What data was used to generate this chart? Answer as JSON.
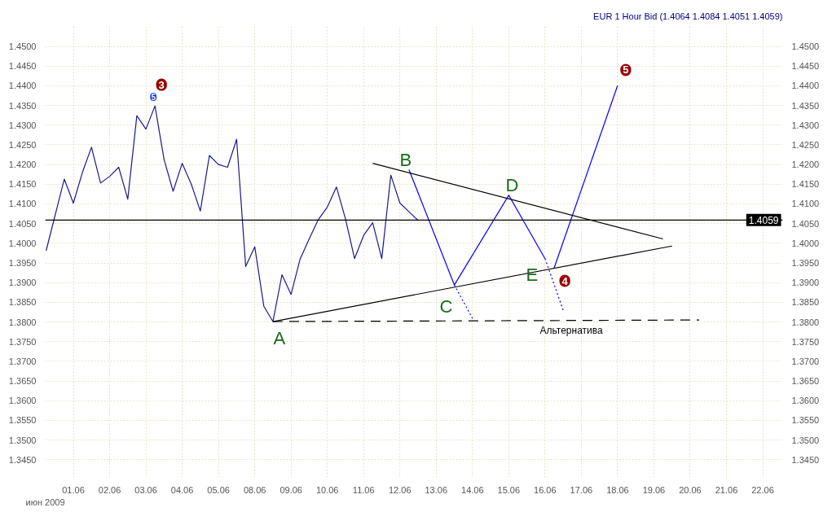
{
  "chart_data": {
    "type": "line",
    "title": "EUR 1 Hour Bid (1.4064 1.4084 1.4051 1.4059)",
    "xlabel": "июн 2009",
    "categories": [
      null,
      null,
      null,
      "01.06",
      null,
      null,
      null,
      "02.06",
      null,
      null,
      null,
      "03.06",
      null,
      null,
      null,
      "04.06",
      null,
      null,
      null,
      "05.06",
      null,
      null,
      null,
      "08.06",
      null,
      null,
      null,
      "09.06",
      null,
      null,
      null,
      "10.06",
      null,
      null,
      null,
      "11.06",
      null,
      null,
      null,
      "12.06",
      null,
      null,
      null,
      "13.06",
      null,
      null,
      null,
      "14.06",
      null,
      null,
      null,
      "15.06",
      null,
      null,
      null,
      "16.06",
      null,
      null,
      null,
      "17.06",
      null,
      null,
      null,
      "18.06",
      null,
      null,
      null,
      "19.06",
      null,
      null,
      null,
      "20.06",
      null,
      null,
      null,
      "21.06",
      null,
      null,
      null,
      "22.06"
    ],
    "ylim": [
      1.3405,
      1.4555
    ],
    "yticks": [
      {
        "value": 1.345,
        "label": "1.3450"
      },
      {
        "value": 1.35,
        "label": "1.3500"
      },
      {
        "value": 1.355,
        "label": "1.3550"
      },
      {
        "value": 1.36,
        "label": "1.3600"
      },
      {
        "value": 1.365,
        "label": "1.3650"
      },
      {
        "value": 1.37,
        "label": "1.3700"
      },
      {
        "value": 1.375,
        "label": "1.3750"
      },
      {
        "value": 1.38,
        "label": "1.3800"
      },
      {
        "value": 1.385,
        "label": "1.3850"
      },
      {
        "value": 1.39,
        "label": "1.3900"
      },
      {
        "value": 1.395,
        "label": "1.3950"
      },
      {
        "value": 1.4,
        "label": "1.4000"
      },
      {
        "value": 1.405,
        "label": "1.4050"
      },
      {
        "value": 1.41,
        "label": "1.4100"
      },
      {
        "value": 1.415,
        "label": "1.4150"
      },
      {
        "value": 1.42,
        "label": "1.4200"
      },
      {
        "value": 1.425,
        "label": "1.4250"
      },
      {
        "value": 1.43,
        "label": "1.4300"
      },
      {
        "value": 1.435,
        "label": "1.4350"
      },
      {
        "value": 1.44,
        "label": "1.4400"
      },
      {
        "value": 1.445,
        "label": "1.4450"
      },
      {
        "value": 1.45,
        "label": "1.4500"
      }
    ],
    "y2lim": [
      1.3405,
      1.4555
    ],
    "y2ticks": [
      {
        "value": 1.345,
        "label": "1.3450"
      },
      {
        "value": 1.35,
        "label": "1.3500"
      },
      {
        "value": 1.355,
        "label": "1.3550"
      },
      {
        "value": 1.36,
        "label": "1.3600"
      },
      {
        "value": 1.365,
        "label": "1.3650"
      },
      {
        "value": 1.37,
        "label": "1.3700"
      },
      {
        "value": 1.375,
        "label": "1.3750"
      },
      {
        "value": 1.38,
        "label": "1.3800"
      },
      {
        "value": 1.385,
        "label": "1.3850"
      },
      {
        "value": 1.39,
        "label": "1.3900"
      },
      {
        "value": 1.395,
        "label": "1.3950"
      },
      {
        "value": 1.4,
        "label": "1.4000"
      },
      {
        "value": 1.405,
        "label": "1.4050"
      },
      {
        "value": 1.41,
        "label": "1.4100"
      },
      {
        "value": 1.415,
        "label": "1.4150"
      },
      {
        "value": 1.42,
        "label": "1.4200"
      },
      {
        "value": 1.425,
        "label": "1.4250"
      },
      {
        "value": 1.43,
        "label": "1.4300"
      },
      {
        "value": 1.435,
        "label": "1.4350"
      },
      {
        "value": 1.44,
        "label": "1.4400"
      },
      {
        "value": 1.445,
        "label": "1.4450"
      },
      {
        "value": 1.45,
        "label": "1.4500"
      }
    ],
    "grid": true,
    "series": [
      {
        "color": "#1a1a8c",
        "values": [
          1.3981,
          1.4072,
          1.4163,
          1.4102,
          1.418,
          1.4244,
          1.4153,
          1.417,
          1.4193,
          1.4112,
          1.4324,
          1.429,
          1.4349,
          1.4213,
          1.4132,
          1.4203,
          1.415,
          1.4082,
          1.4223,
          1.42,
          1.4193,
          1.4264,
          1.3941,
          1.3991,
          1.384,
          1.3801,
          1.392,
          1.387,
          1.396,
          1.4011,
          1.406,
          1.4092,
          1.4143,
          1.4062,
          1.3961,
          1.402,
          1.4052,
          1.3961,
          1.4173,
          1.4102,
          1.408,
          1.4058,
          null,
          null,
          null,
          null,
          null,
          null,
          null,
          null,
          null,
          null,
          null,
          null,
          null,
          null,
          null,
          null,
          null,
          null,
          null,
          null,
          null,
          null,
          null,
          null,
          null,
          null,
          null,
          null,
          null,
          null,
          null,
          null,
          null,
          null,
          null,
          null,
          null,
          null
        ]
      },
      {
        "color": "#0000ff",
        "line_style": "solid",
        "values": [
          null,
          null,
          null,
          null,
          null,
          null,
          null,
          null,
          null,
          null,
          null,
          null,
          null,
          null,
          null,
          null,
          null,
          null,
          null,
          null,
          null,
          null,
          null,
          null,
          null,
          null,
          null,
          null,
          null,
          null,
          null,
          null,
          null,
          null,
          null,
          null,
          null,
          null,
          null,
          null,
          1.4187,
          null,
          null,
          null,
          null,
          1.3894,
          null,
          null,
          null,
          null,
          null,
          1.4122,
          null,
          null,
          null,
          1.3961,
          null,
          null,
          null,
          null,
          null,
          null,
          null,
          null,
          null,
          null,
          null,
          null,
          null,
          null,
          null,
          null,
          null,
          null,
          null,
          null,
          null,
          null,
          null,
          null
        ]
      },
      {
        "color": "#0000ff",
        "line_style": "solid",
        "values": [
          null,
          null,
          null,
          null,
          null,
          null,
          null,
          null,
          null,
          null,
          null,
          null,
          null,
          null,
          null,
          null,
          null,
          null,
          null,
          null,
          null,
          null,
          null,
          null,
          null,
          null,
          null,
          null,
          null,
          null,
          null,
          null,
          null,
          null,
          null,
          null,
          null,
          null,
          null,
          null,
          null,
          null,
          null,
          null,
          null,
          null,
          null,
          null,
          null,
          null,
          null,
          null,
          null,
          null,
          null,
          null,
          1.3937,
          null,
          null,
          null,
          null,
          null,
          null,
          1.4401,
          null,
          null,
          null,
          null,
          null,
          null,
          null,
          null,
          null,
          null,
          null,
          null,
          null,
          null,
          null,
          null
        ]
      },
      {
        "color": "#0000ff",
        "line_style": "dotted",
        "values": [
          null,
          null,
          null,
          null,
          null,
          null,
          null,
          null,
          null,
          null,
          null,
          null,
          null,
          null,
          null,
          null,
          null,
          null,
          null,
          null,
          null,
          null,
          null,
          null,
          null,
          null,
          null,
          null,
          null,
          null,
          null,
          null,
          null,
          null,
          null,
          null,
          null,
          null,
          null,
          null,
          null,
          null,
          null,
          null,
          null,
          1.3894,
          null,
          1.3809,
          null,
          null,
          null,
          null,
          null,
          null,
          null,
          null,
          null,
          null,
          null,
          null,
          null,
          null,
          null,
          null,
          null,
          null,
          null,
          null,
          null,
          null,
          null,
          null,
          null,
          null,
          null,
          null,
          null,
          null,
          null,
          null
        ]
      },
      {
        "color": "#0000ff",
        "line_style": "dotted",
        "values": [
          null,
          null,
          null,
          null,
          null,
          null,
          null,
          null,
          null,
          null,
          null,
          null,
          null,
          null,
          null,
          null,
          null,
          null,
          null,
          null,
          null,
          null,
          null,
          null,
          null,
          null,
          null,
          null,
          null,
          null,
          null,
          null,
          null,
          null,
          null,
          null,
          null,
          null,
          null,
          null,
          null,
          null,
          null,
          null,
          null,
          null,
          null,
          null,
          null,
          null,
          null,
          null,
          null,
          null,
          null,
          1.3961,
          null,
          1.383,
          null,
          null,
          null,
          null,
          null,
          null,
          null,
          null,
          null,
          null,
          null,
          null,
          null,
          null,
          null,
          null,
          null,
          null,
          null,
          null,
          null,
          null
        ]
      },
      {
        "color": "#000000",
        "line_style": "solid",
        "values": [
          null,
          null,
          null,
          null,
          null,
          null,
          null,
          null,
          null,
          null,
          null,
          null,
          null,
          null,
          null,
          null,
          null,
          null,
          null,
          null,
          null,
          null,
          null,
          null,
          null,
          null,
          null,
          null,
          null,
          null,
          null,
          null,
          null,
          null,
          null,
          null,
          1.4203,
          null,
          null,
          null,
          null,
          null,
          null,
          null,
          null,
          null,
          null,
          null,
          null,
          null,
          null,
          null,
          null,
          null,
          null,
          null,
          null,
          null,
          null,
          null,
          null,
          null,
          null,
          null,
          null,
          null,
          null,
          null,
          1.4011,
          null,
          null,
          null,
          null,
          null,
          null,
          null,
          null,
          null,
          null,
          null
        ]
      },
      {
        "color": "#000000",
        "line_style": "solid",
        "values": [
          null,
          null,
          null,
          null,
          null,
          null,
          null,
          null,
          null,
          null,
          null,
          null,
          null,
          null,
          null,
          null,
          null,
          null,
          null,
          null,
          null,
          null,
          null,
          null,
          null,
          1.3801,
          null,
          null,
          null,
          null,
          null,
          null,
          null,
          null,
          null,
          null,
          null,
          null,
          null,
          null,
          null,
          null,
          null,
          null,
          null,
          null,
          null,
          null,
          null,
          null,
          null,
          null,
          null,
          null,
          null,
          null,
          null,
          null,
          null,
          null,
          null,
          null,
          null,
          null,
          null,
          null,
          null,
          null,
          null,
          1.3993,
          null,
          null,
          null,
          null,
          null,
          null,
          null,
          null,
          null,
          null
        ]
      },
      {
        "color": "#000000",
        "line_style": "dashed",
        "values": [
          null,
          null,
          null,
          null,
          null,
          null,
          null,
          null,
          null,
          null,
          null,
          null,
          null,
          null,
          null,
          null,
          null,
          null,
          null,
          null,
          null,
          null,
          null,
          null,
          null,
          1.3801,
          null,
          null,
          null,
          null,
          null,
          null,
          null,
          null,
          null,
          null,
          null,
          null,
          null,
          null,
          null,
          null,
          null,
          null,
          null,
          null,
          null,
          null,
          null,
          null,
          null,
          null,
          null,
          null,
          null,
          null,
          null,
          null,
          null,
          null,
          null,
          null,
          null,
          null,
          null,
          null,
          null,
          null,
          null,
          null,
          null,
          null,
          1.3805,
          null,
          null,
          null,
          null,
          null,
          null,
          null
        ]
      }
    ],
    "ref_lines": [
      {
        "axis": "y",
        "value": 1.4059,
        "label": "1.4059",
        "color": "#000000"
      }
    ],
    "annotations": [
      "A",
      "B",
      "C",
      "D",
      "E",
      "Альтернатива",
      "3",
      "4",
      "5",
      "5"
    ]
  }
}
